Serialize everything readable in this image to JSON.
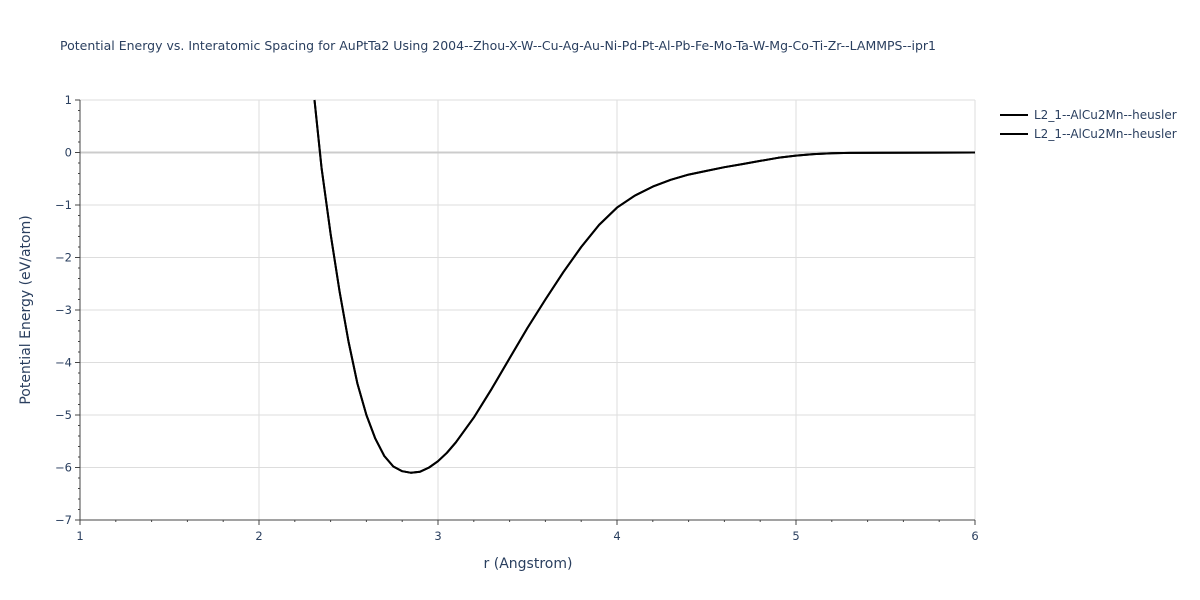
{
  "chart_data": {
    "type": "line",
    "title": "Potential Energy vs. Interatomic Spacing for AuPtTa2 Using 2004--Zhou-X-W--Cu-Ag-Au-Ni-Pd-Pt-Al-Pb-Fe-Mo-Ta-W-Mg-Co-Ti-Zr--LAMMPS--ipr1",
    "xlabel": "r (Angstrom)",
    "ylabel": "Potential Energy (eV/atom)",
    "xlim": [
      1,
      6
    ],
    "ylim": [
      -7,
      1
    ],
    "x_ticks": [
      "1",
      "2",
      "3",
      "4",
      "5",
      "6"
    ],
    "y_ticks": [
      "1",
      "0",
      "−1",
      "−2",
      "−3",
      "−4",
      "−5",
      "−6",
      "−7"
    ],
    "grid": true,
    "legend_position": "top-right",
    "series": [
      {
        "name": "L2_1--AlCu2Mn--heusler",
        "color": "#000000",
        "x": [
          2.31,
          2.35,
          2.4,
          2.45,
          2.5,
          2.55,
          2.6,
          2.65,
          2.7,
          2.75,
          2.8,
          2.85,
          2.9,
          2.95,
          3.0,
          3.05,
          3.1,
          3.2,
          3.3,
          3.4,
          3.5,
          3.6,
          3.7,
          3.8,
          3.9,
          4.0,
          4.1,
          4.2,
          4.3,
          4.4,
          4.5,
          4.6,
          4.7,
          4.8,
          4.9,
          5.0,
          5.1,
          5.2,
          5.3,
          5.5,
          5.8,
          6.0
        ],
        "y": [
          1.0,
          -0.3,
          -1.55,
          -2.65,
          -3.6,
          -4.4,
          -5.0,
          -5.45,
          -5.78,
          -5.98,
          -6.07,
          -6.1,
          -6.08,
          -6.0,
          -5.88,
          -5.72,
          -5.52,
          -5.05,
          -4.5,
          -3.92,
          -3.34,
          -2.8,
          -2.28,
          -1.8,
          -1.38,
          -1.05,
          -0.82,
          -0.65,
          -0.52,
          -0.42,
          -0.35,
          -0.28,
          -0.22,
          -0.16,
          -0.1,
          -0.06,
          -0.03,
          -0.015,
          -0.008,
          -0.004,
          -0.001,
          0.0
        ]
      },
      {
        "name": "L2_1--AlCu2Mn--heusler",
        "color": "#000000",
        "x": [
          2.31,
          2.35,
          2.4,
          2.45,
          2.5,
          2.55,
          2.6,
          2.65,
          2.7,
          2.75,
          2.8,
          2.85,
          2.9,
          2.95,
          3.0,
          3.05,
          3.1,
          3.2,
          3.3,
          3.4,
          3.5,
          3.6,
          3.7,
          3.8,
          3.9,
          4.0,
          4.1,
          4.2,
          4.3,
          4.4,
          4.5,
          4.6,
          4.7,
          4.8,
          4.9,
          5.0,
          5.1,
          5.2,
          5.3,
          5.5,
          5.8,
          6.0
        ],
        "y": [
          1.0,
          -0.3,
          -1.55,
          -2.65,
          -3.6,
          -4.4,
          -5.0,
          -5.45,
          -5.78,
          -5.98,
          -6.07,
          -6.1,
          -6.08,
          -6.0,
          -5.88,
          -5.72,
          -5.52,
          -5.05,
          -4.5,
          -3.92,
          -3.34,
          -2.8,
          -2.28,
          -1.8,
          -1.38,
          -1.05,
          -0.82,
          -0.65,
          -0.52,
          -0.42,
          -0.35,
          -0.28,
          -0.22,
          -0.16,
          -0.1,
          -0.06,
          -0.03,
          -0.015,
          -0.008,
          -0.004,
          -0.001,
          0.0
        ]
      }
    ]
  }
}
